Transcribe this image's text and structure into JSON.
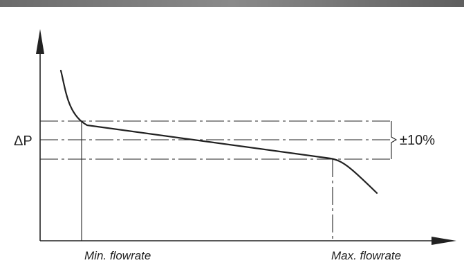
{
  "diagram": {
    "y_axis_label": "ΔP",
    "tolerance_label": "±10%",
    "x_label_min": "Min. flowrate",
    "x_label_max": "Max. flowrate"
  }
}
